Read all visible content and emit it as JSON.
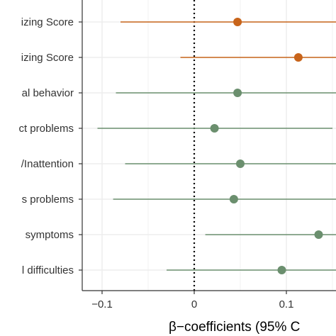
{
  "chart_data": {
    "type": "scatter",
    "title": "",
    "xlabel": "β−coefficients (95% C",
    "ylabel": "",
    "xlim": [
      -0.125,
      0.16
    ],
    "x_ticks": [
      -0.1,
      0.0,
      0.1
    ],
    "x_tick_labels": [
      "−0.1",
      "0",
      "0.1"
    ],
    "reference_line_x": 0,
    "grid": true,
    "categories": [
      "izing Score",
      "izing Score",
      "al behavior",
      "ct problems",
      "/Inattention",
      "s problems",
      "symptoms",
      "l difficulties"
    ],
    "estimates": [
      0.047,
      0.113,
      0.047,
      0.022,
      0.05,
      0.043,
      0.135,
      0.095
    ],
    "ci_low": [
      -0.08,
      -0.015,
      -0.085,
      -0.105,
      -0.075,
      -0.088,
      0.012,
      -0.03
    ],
    "ci_high": [
      0.16,
      0.16,
      0.16,
      0.15,
      0.16,
      0.16,
      0.16,
      0.16
    ],
    "point_colors": [
      "#c8641a",
      "#c8641a",
      "#6b8f6e",
      "#6b8f6e",
      "#6b8f6e",
      "#6b8f6e",
      "#6b8f6e",
      "#6b8f6e"
    ]
  }
}
